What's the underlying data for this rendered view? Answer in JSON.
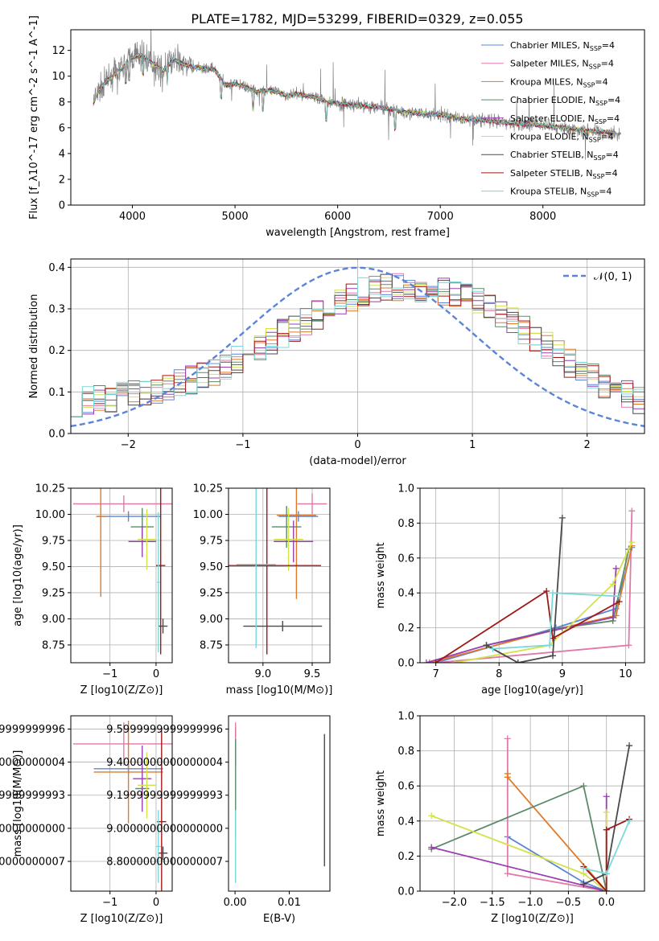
{
  "figure": {
    "title": "PLATE=1782, MJD=53299, FIBERID=0329, z=0.055"
  },
  "colors": {
    "Chabrier MILES": "#5b84d8",
    "Salpeter MILES": "#e07aa8",
    "Kroupa MILES": "#e07a2a",
    "Chabrier ELODIE": "#5a8a6a",
    "Salpeter ELODIE": "#9a3fb0",
    "Kroupa ELODIE": "#d4e24a",
    "Chabrier STELIB": "#4a4a4a",
    "Salpeter STELIB": "#a01818",
    "Kroupa STELIB": "#7ad8d8",
    "data": "#808080",
    "normal": "#5b84d8"
  },
  "chart_data": [
    {
      "id": "spectrum",
      "type": "line",
      "title": "PLATE=1782, MJD=53299, FIBERID=0329, z=0.055",
      "xlabel": "wavelength [Angstrom, rest frame]",
      "ylabel": "Flux [f_λ10^-17 erg cm^-2 s^-1 A^-1]",
      "xlim": [
        3400,
        8990
      ],
      "ylim": [
        0,
        13.6
      ],
      "xticks": [
        4000,
        5000,
        6000,
        7000,
        8000
      ],
      "yticks": [
        0,
        2,
        4,
        6,
        8,
        10,
        12
      ],
      "legend_position": "top-right",
      "continuum": {
        "x": [
          3620,
          3700,
          3800,
          3900,
          4000,
          4100,
          4200,
          4300,
          4400,
          4500,
          4600,
          4700,
          4800,
          4900,
          5000,
          5100,
          5200,
          5300,
          5400,
          5500,
          5600,
          5700,
          5800,
          5900,
          6000,
          6200,
          6400,
          6600,
          6800,
          7000,
          7200,
          7400,
          7600,
          7800,
          8000,
          8200,
          8400,
          8700
        ],
        "y": [
          8.0,
          9.2,
          10.0,
          10.6,
          11.5,
          11.6,
          11.0,
          10.4,
          11.3,
          10.9,
          10.7,
          10.6,
          10.5,
          9.3,
          9.4,
          9.2,
          8.8,
          8.9,
          8.8,
          8.5,
          8.6,
          8.5,
          8.3,
          8.0,
          7.9,
          7.7,
          7.6,
          7.3,
          7.1,
          7.0,
          6.7,
          6.6,
          6.4,
          6.3,
          6.2,
          6.0,
          5.8,
          5.6
        ]
      },
      "series": [
        {
          "name": "Chabrier MILES",
          "label": "Chabrier MILES, N_SSP=4"
        },
        {
          "name": "Salpeter MILES",
          "label": "Salpeter MILES, N_SSP=4"
        },
        {
          "name": "Kroupa MILES",
          "label": "Kroupa MILES, N_SSP=4"
        },
        {
          "name": "Chabrier ELODIE",
          "label": "Chabrier ELODIE, N_SSP=4"
        },
        {
          "name": "Salpeter ELODIE",
          "label": "Salpeter ELODIE, N_SSP=4"
        },
        {
          "name": "Kroupa ELODIE",
          "label": "Kroupa ELODIE, N_SSP=4"
        },
        {
          "name": "Chabrier STELIB",
          "label": "Chabrier STELIB, N_SSP=4"
        },
        {
          "name": "Salpeter STELIB",
          "label": "Salpeter STELIB, N_SSP=4"
        },
        {
          "name": "Kroupa STELIB",
          "label": "Kroupa STELIB, N_SSP=4"
        }
      ]
    },
    {
      "id": "residuals",
      "type": "line",
      "xlabel": "(data-model)/error",
      "ylabel": "Normed distribution",
      "xlim": [
        -2.5,
        2.5
      ],
      "ylim": [
        0,
        0.42
      ],
      "xticks": [
        -2,
        -1,
        0,
        1,
        2
      ],
      "yticks": [
        0.0,
        0.1,
        0.2,
        0.3,
        0.4
      ],
      "grid": true,
      "legend_position": "top-right",
      "reference": {
        "name": "𝒩(0, 1)",
        "style": "dashed"
      },
      "bin_width": 0.1,
      "bin_start": -2.5,
      "mean_hist": [
        0.075,
        0.08,
        0.083,
        0.087,
        0.09,
        0.095,
        0.1,
        0.105,
        0.112,
        0.12,
        0.13,
        0.14,
        0.15,
        0.165,
        0.18,
        0.195,
        0.21,
        0.225,
        0.24,
        0.255,
        0.27,
        0.285,
        0.3,
        0.315,
        0.33,
        0.34,
        0.345,
        0.35,
        0.352,
        0.352,
        0.35,
        0.345,
        0.34,
        0.335,
        0.33,
        0.32,
        0.305,
        0.29,
        0.27,
        0.25,
        0.23,
        0.21,
        0.19,
        0.17,
        0.15,
        0.135,
        0.12,
        0.105,
        0.092,
        0.08
      ]
    },
    {
      "id": "age-vs-Z",
      "type": "scatter",
      "xlabel": "Z [log10(Z/Z⊙)]",
      "ylabel": "age  [log10(age/yr)]",
      "xlim": [
        -1.85,
        0.35
      ],
      "ylim": [
        8.58,
        10.25
      ],
      "xticks": [
        -1,
        0
      ],
      "yticks": [
        8.75,
        9.0,
        9.25,
        9.5,
        9.75,
        10.0,
        10.25
      ],
      "grid": true,
      "points": [
        {
          "series": "Chabrier MILES",
          "x": -0.6,
          "xerr": 0.7,
          "y": 9.98,
          "yerr": 0.05
        },
        {
          "series": "Salpeter MILES",
          "x": -0.7,
          "xerr": 1.1,
          "y": 10.1,
          "yerr": 0.08
        },
        {
          "series": "Kroupa MILES",
          "x": -1.2,
          "xerr": 0.1,
          "y": 9.98,
          "yerr": 0.77
        },
        {
          "series": "Chabrier ELODIE",
          "x": -0.3,
          "xerr": 0.25,
          "y": 9.88,
          "yerr": 0.18
        },
        {
          "series": "Salpeter ELODIE",
          "x": -0.3,
          "xerr": 0.3,
          "y": 9.74,
          "yerr": 0.15
        },
        {
          "series": "Kroupa ELODIE",
          "x": -0.2,
          "xerr": 0.2,
          "y": 9.76,
          "yerr": 0.29
        },
        {
          "series": "Chabrier STELIB",
          "x": 0.15,
          "xerr": 0.1,
          "y": 8.93,
          "yerr": 0.07
        },
        {
          "series": "Salpeter STELIB",
          "x": 0.1,
          "xerr": 0.1,
          "y": 9.51,
          "yerr": 0.85
        },
        {
          "series": "Kroupa STELIB",
          "x": 0.05,
          "xerr": 0.03,
          "y": 9.35,
          "yerr": 0.67
        }
      ]
    },
    {
      "id": "age-vs-mass",
      "type": "scatter",
      "xlabel": "mass [log10(M/M⊙)]",
      "ylabel": "",
      "xlim": [
        8.65,
        9.68
      ],
      "ylim": [
        8.58,
        10.25
      ],
      "xticks": [
        9.0,
        9.5
      ],
      "yticks": [
        8.75,
        9.0,
        9.25,
        9.5,
        9.75,
        10.0,
        10.25
      ],
      "grid": true,
      "points": [
        {
          "series": "Chabrier MILES",
          "x": 9.36,
          "xerr": 0.2,
          "y": 9.98,
          "yerr": 0.05
        },
        {
          "series": "Salpeter MILES",
          "x": 9.5,
          "xerr": 0.15,
          "y": 10.1,
          "yerr": 0.1
        },
        {
          "series": "Kroupa MILES",
          "x": 9.34,
          "xerr": 0.2,
          "y": 9.99,
          "yerr": 0.8
        },
        {
          "series": "Chabrier ELODIE",
          "x": 9.24,
          "xerr": 0.15,
          "y": 9.88,
          "yerr": 0.2
        },
        {
          "series": "Salpeter ELODIE",
          "x": 9.31,
          "xerr": 0.2,
          "y": 9.74,
          "yerr": 0.2
        },
        {
          "series": "Kroupa ELODIE",
          "x": 9.26,
          "xerr": 0.15,
          "y": 9.76,
          "yerr": 0.3
        },
        {
          "series": "Chabrier STELIB",
          "x": 9.2,
          "xerr": 0.4,
          "y": 8.93,
          "yerr": 0.05
        },
        {
          "series": "Salpeter STELIB",
          "x": 9.04,
          "xerr": 0.55,
          "y": 9.51,
          "yerr": 0.85
        },
        {
          "series": "Kroupa STELIB",
          "x": 8.93,
          "xerr": 0.2,
          "y": 9.52,
          "yerr": 0.8
        }
      ]
    },
    {
      "id": "weight-vs-age",
      "type": "line",
      "xlabel": "age  [log10(age/yr)]",
      "ylabel": "mass weight",
      "xlim": [
        6.75,
        10.3
      ],
      "ylim": [
        0,
        1.0
      ],
      "xticks": [
        7,
        8,
        9,
        10
      ],
      "yticks": [
        0.0,
        0.2,
        0.4,
        0.6,
        0.8,
        1.0
      ],
      "grid": true,
      "series": [
        {
          "name": "Chabrier MILES",
          "x": [
            7.0,
            8.9,
            9.85,
            10.1
          ],
          "y": [
            0.0,
            0.2,
            0.31,
            0.66
          ]
        },
        {
          "name": "Salpeter MILES",
          "x": [
            7.0,
            10.05,
            10.1
          ],
          "y": [
            0.0,
            0.1,
            0.87
          ]
        },
        {
          "name": "Kroupa MILES",
          "x": [
            6.9,
            9.0,
            9.85,
            10.1
          ],
          "y": [
            0.0,
            0.2,
            0.27,
            0.67
          ]
        },
        {
          "name": "Chabrier ELODIE",
          "x": [
            7.8,
            9.0,
            9.8,
            10.05
          ],
          "y": [
            0.1,
            0.2,
            0.24,
            0.65
          ]
        },
        {
          "name": "Salpeter ELODIE",
          "x": [
            6.85,
            7.8,
            9.8,
            9.85
          ],
          "y": [
            0.0,
            0.1,
            0.26,
            0.54
          ]
        },
        {
          "name": "Kroupa ELODIE",
          "x": [
            7.3,
            8.8,
            9.8,
            10.1
          ],
          "y": [
            0.0,
            0.1,
            0.45,
            0.69
          ]
        },
        {
          "name": "Chabrier STELIB",
          "x": [
            7.8,
            8.3,
            8.85,
            9.0
          ],
          "y": [
            0.1,
            0.0,
            0.04,
            0.83
          ]
        },
        {
          "name": "Salpeter STELIB",
          "x": [
            7.0,
            8.75,
            8.85,
            9.9
          ],
          "y": [
            0.0,
            0.41,
            0.14,
            0.35
          ]
        },
        {
          "name": "Kroupa STELIB",
          "x": [
            7.9,
            8.8,
            8.85,
            9.9
          ],
          "y": [
            0.08,
            0.1,
            0.4,
            0.38
          ]
        }
      ]
    },
    {
      "id": "mass-vs-Z",
      "type": "scatter",
      "xlabel": "Z [log10(Z/Z⊙)]",
      "ylabel": "mass [log10(M/M⊙)]",
      "xlim": [
        -1.85,
        0.35
      ],
      "ylim": [
        8.62,
        9.68
      ],
      "xticks": [
        -1,
        0
      ],
      "yticks": [
        8.8,
        9.0,
        9.2,
        9.4,
        9.6
      ],
      "grid": true,
      "points": [
        {
          "series": "Chabrier MILES",
          "x": -0.6,
          "xerr": 0.75,
          "y": 9.36,
          "yerr": 0.03
        },
        {
          "series": "Salpeter MILES",
          "x": -0.7,
          "xerr": 1.1,
          "y": 9.51,
          "yerr": 0.13
        },
        {
          "series": "Kroupa MILES",
          "x": -0.6,
          "xerr": 0.75,
          "y": 9.34,
          "yerr": 0.31
        },
        {
          "series": "Chabrier ELODIE",
          "x": -0.3,
          "xerr": 0.15,
          "y": 9.24,
          "yerr": 0.03
        },
        {
          "series": "Salpeter ELODIE",
          "x": -0.3,
          "xerr": 0.2,
          "y": 9.3,
          "yerr": 0.2
        },
        {
          "series": "Kroupa ELODIE",
          "x": -0.2,
          "xerr": 0.2,
          "y": 9.26,
          "yerr": 0.2
        },
        {
          "series": "Chabrier STELIB",
          "x": 0.15,
          "xerr": 0.1,
          "y": 8.85,
          "yerr": 0.04
        },
        {
          "series": "Salpeter STELIB",
          "x": 0.12,
          "xerr": 0.1,
          "y": 9.04,
          "yerr": 0.55
        },
        {
          "series": "Kroupa STELIB",
          "x": 0.05,
          "xerr": 0.05,
          "y": 8.89,
          "yerr": 0.22
        }
      ]
    },
    {
      "id": "mass-vs-ebv",
      "type": "scatter",
      "xlabel": "E(B-V)",
      "ylabel": "",
      "xlim": [
        -0.0012,
        0.0175
      ],
      "ylim": [
        8.62,
        9.68
      ],
      "xticks": [
        0.0,
        0.01
      ],
      "yticks": [
        8.8,
        9.0,
        9.2,
        9.4,
        9.6
      ],
      "grid": false,
      "points": [
        {
          "series": "Salpeter STELIB",
          "x": 0.0001,
          "y": 9.58,
          "yerr": 0.03
        },
        {
          "series": "Salpeter MILES",
          "x": 0.0001,
          "y": 9.51,
          "yerr": 0.13
        },
        {
          "series": "Chabrier ELODIE",
          "x": 0.0001,
          "y": 9.24,
          "yerr": 0.3
        },
        {
          "series": "Kroupa STELIB",
          "x": 0.0001,
          "y": 8.89,
          "yerr": 0.22
        },
        {
          "series": "Chabrier STELIB",
          "x": 0.0165,
          "y": 9.17,
          "yerr": 0.4
        }
      ]
    },
    {
      "id": "weight-vs-Z",
      "type": "line",
      "xlabel": "Z [log10(Z/Z⊙)]",
      "ylabel": "mass weight",
      "xlim": [
        -2.45,
        0.5
      ],
      "ylim": [
        0,
        1.0
      ],
      "xticks": [
        -2.0,
        -1.5,
        -1.0,
        -0.5,
        0.0
      ],
      "yticks": [
        0.0,
        0.2,
        0.4,
        0.6,
        0.8,
        1.0
      ],
      "grid": true,
      "series": [
        {
          "name": "Chabrier MILES",
          "x": [
            -1.3,
            -0.3,
            0.0
          ],
          "y": [
            0.31,
            0.05,
            0.0
          ]
        },
        {
          "name": "Salpeter MILES",
          "x": [
            -1.3,
            -1.3,
            0.0
          ],
          "y": [
            0.87,
            0.1,
            0.0
          ]
        },
        {
          "name": "Kroupa MILES",
          "x": [
            -1.3,
            -1.3,
            0.0
          ],
          "y": [
            0.67,
            0.65,
            0.0
          ]
        },
        {
          "name": "Chabrier ELODIE",
          "x": [
            -2.3,
            -0.3,
            0.0
          ],
          "y": [
            0.24,
            0.6,
            0.0
          ]
        },
        {
          "name": "Salpeter ELODIE",
          "x": [
            -2.3,
            0.0,
            0.0
          ],
          "y": [
            0.25,
            0.0,
            0.54
          ]
        },
        {
          "name": "Kroupa ELODIE",
          "x": [
            -2.3,
            -0.3,
            0.0,
            0.0
          ],
          "y": [
            0.43,
            0.1,
            0.0,
            0.45
          ]
        },
        {
          "name": "Chabrier STELIB",
          "x": [
            -0.3,
            0.0,
            0.3
          ],
          "y": [
            0.04,
            0.1,
            0.83
          ]
        },
        {
          "name": "Salpeter STELIB",
          "x": [
            -0.3,
            0.0,
            0.0,
            0.3
          ],
          "y": [
            0.14,
            0.0,
            0.35,
            0.41
          ]
        },
        {
          "name": "Kroupa STELIB",
          "x": [
            -0.3,
            0.0,
            0.3
          ],
          "y": [
            0.13,
            0.1,
            0.4
          ]
        }
      ]
    }
  ]
}
